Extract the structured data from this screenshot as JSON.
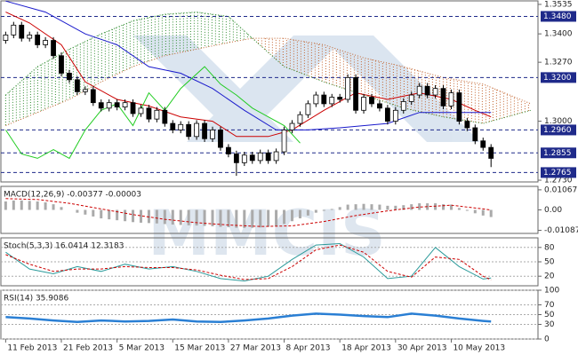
{
  "watermark": "MMCIS",
  "chart_data": [
    {
      "type": "candlestick",
      "xlim": [
        -0.6,
        66.9
      ],
      "ylim": [
        1.2722,
        1.3551
      ],
      "yticks": [
        1.3535,
        {
          "value": 1.34,
          "label": "1.3400"
        },
        {
          "value": 1.327,
          "label": "1.3270"
        },
        {
          "value": 1.3,
          "label": "1.3000"
        },
        {
          "value": 1.273,
          "label": "1.2730"
        }
      ],
      "levels": [
        {
          "value": 1.348,
          "label": "1.3480"
        },
        {
          "value": 1.32,
          "label": "1.3200"
        },
        {
          "value": 1.296,
          "label": "1.2960"
        },
        {
          "value": 1.2855,
          "label": "1.2855"
        },
        {
          "value": 1.2765,
          "label": "1.2765"
        }
      ],
      "level_color": "#1f2a8a",
      "x": [
        0,
        1,
        2,
        3,
        4,
        5,
        6,
        7,
        8,
        9,
        10,
        11,
        12,
        13,
        14,
        15,
        16,
        17,
        18,
        19,
        20,
        21,
        22,
        23,
        24,
        25,
        26,
        27,
        28,
        29,
        30,
        31,
        32,
        33,
        34,
        35,
        36,
        37,
        38,
        39,
        40,
        41,
        42,
        43,
        44,
        45,
        46,
        47,
        48,
        49,
        50,
        51,
        52,
        53,
        54,
        55,
        56,
        57,
        58,
        59,
        60,
        61
      ],
      "open": [
        1.337,
        1.3395,
        1.344,
        1.338,
        1.3395,
        1.335,
        1.337,
        1.33,
        1.322,
        1.319,
        1.3135,
        1.3145,
        1.3085,
        1.306,
        1.3085,
        1.3065,
        1.3085,
        1.3035,
        1.306,
        1.301,
        1.305,
        1.299,
        1.296,
        1.2985,
        1.293,
        1.299,
        1.292,
        1.296,
        1.288,
        1.285,
        1.281,
        1.2845,
        1.282,
        1.2855,
        1.282,
        1.286,
        1.296,
        1.299,
        1.303,
        1.308,
        1.312,
        1.308,
        1.311,
        1.31,
        1.32,
        1.305,
        1.311,
        1.308,
        1.306,
        1.3,
        1.305,
        1.309,
        1.312,
        1.316,
        1.312,
        1.315,
        1.307,
        1.313,
        1.3,
        1.297,
        1.291,
        1.288
      ],
      "high": [
        1.341,
        1.3455,
        1.3455,
        1.341,
        1.341,
        1.3385,
        1.3385,
        1.3315,
        1.3235,
        1.3205,
        1.316,
        1.316,
        1.31,
        1.31,
        1.31,
        1.31,
        1.31,
        1.3075,
        1.3075,
        1.3065,
        1.3065,
        1.3005,
        1.3,
        1.3,
        1.3005,
        1.3005,
        1.2975,
        1.2975,
        1.2895,
        1.2865,
        1.286,
        1.286,
        1.287,
        1.287,
        1.2875,
        1.2975,
        1.3005,
        1.3045,
        1.3095,
        1.3135,
        1.3135,
        1.3125,
        1.3125,
        1.3215,
        1.3215,
        1.3125,
        1.3125,
        1.3095,
        1.3075,
        1.3065,
        1.3105,
        1.3135,
        1.3175,
        1.3175,
        1.3165,
        1.3165,
        1.3145,
        1.3145,
        1.3015,
        1.2985,
        1.2925,
        1.2895
      ],
      "low": [
        1.3355,
        1.338,
        1.3365,
        1.3365,
        1.3335,
        1.3335,
        1.3285,
        1.3205,
        1.3175,
        1.312,
        1.312,
        1.307,
        1.3045,
        1.3045,
        1.305,
        1.305,
        1.302,
        1.302,
        1.2995,
        1.2995,
        1.2975,
        1.2945,
        1.2945,
        1.2915,
        1.2915,
        1.2905,
        1.2905,
        1.2865,
        1.2835,
        1.275,
        1.2795,
        1.2805,
        1.2805,
        1.2805,
        1.2805,
        1.2845,
        1.2945,
        1.2975,
        1.3015,
        1.3065,
        1.3065,
        1.3065,
        1.3085,
        1.3085,
        1.3035,
        1.3035,
        1.3065,
        1.3045,
        1.2985,
        1.2985,
        1.3035,
        1.3075,
        1.3105,
        1.3105,
        1.3105,
        1.3055,
        1.3055,
        1.2985,
        1.2955,
        1.2895,
        1.2865,
        1.279
      ],
      "close": [
        1.3395,
        1.344,
        1.338,
        1.3395,
        1.335,
        1.337,
        1.33,
        1.322,
        1.319,
        1.3135,
        1.3145,
        1.3085,
        1.306,
        1.3085,
        1.3065,
        1.3085,
        1.3035,
        1.306,
        1.301,
        1.305,
        1.299,
        1.296,
        1.2985,
        1.293,
        1.299,
        1.292,
        1.296,
        1.288,
        1.285,
        1.281,
        1.2845,
        1.282,
        1.2855,
        1.282,
        1.286,
        1.296,
        1.299,
        1.303,
        1.308,
        1.312,
        1.308,
        1.311,
        1.31,
        1.32,
        1.305,
        1.311,
        1.308,
        1.306,
        1.3,
        1.305,
        1.309,
        1.312,
        1.316,
        1.312,
        1.315,
        1.307,
        1.313,
        1.3,
        1.297,
        1.291,
        1.288,
        1.283
      ],
      "cloud": {
        "x": [
          0,
          4,
          8,
          12,
          16,
          20,
          24,
          28,
          31,
          35,
          40,
          45,
          50,
          55,
          60,
          66
        ],
        "span_a": [
          1.312,
          1.325,
          1.333,
          1.34,
          1.346,
          1.349,
          1.35,
          1.348,
          1.338,
          1.325,
          1.318,
          1.312,
          1.306,
          1.302,
          1.299,
          1.305
        ],
        "span_b": [
          1.298,
          1.304,
          1.31,
          1.318,
          1.325,
          1.33,
          1.333,
          1.336,
          1.338,
          1.338,
          1.335,
          1.329,
          1.325,
          1.32,
          1.317,
          1.308
        ],
        "colors": [
          "#2e8b2e",
          "#c0602a"
        ]
      },
      "series": [
        {
          "kind": "line",
          "color": "#cc0000",
          "x": [
            0,
            3,
            7,
            10,
            14,
            18,
            22,
            26,
            29,
            33,
            36,
            40,
            44,
            48,
            52,
            56,
            59,
            61
          ],
          "values": [
            1.35,
            1.345,
            1.335,
            1.318,
            1.31,
            1.307,
            1.302,
            1.3,
            1.293,
            1.293,
            1.296,
            1.305,
            1.313,
            1.31,
            1.313,
            1.31,
            1.305,
            1.302
          ]
        },
        {
          "kind": "line",
          "color": "#1a1acc",
          "x": [
            0,
            5,
            10,
            14,
            18,
            22,
            26,
            30,
            34,
            38,
            42,
            48,
            52,
            56,
            61
          ],
          "values": [
            1.355,
            1.35,
            1.34,
            1.335,
            1.325,
            1.322,
            1.315,
            1.305,
            1.296,
            1.296,
            1.297,
            1.299,
            1.304,
            1.304,
            1.304
          ]
        },
        {
          "kind": "line",
          "color": "#22cc22",
          "x": [
            0,
            2,
            4,
            6,
            8,
            10,
            12,
            14,
            16,
            18,
            20,
            22,
            25,
            27,
            29,
            31,
            33,
            35,
            37
          ],
          "values": [
            1.296,
            1.285,
            1.283,
            1.287,
            1.283,
            1.296,
            1.305,
            1.308,
            1.298,
            1.313,
            1.305,
            1.315,
            1.325,
            1.317,
            1.312,
            1.306,
            1.302,
            1.298,
            1.29
          ]
        }
      ]
    },
    {
      "type": "indicator",
      "title": "MACD(12,26,9) -0.00377 -0.00003",
      "xlim": [
        -0.6,
        66.9
      ],
      "ylim": [
        -0.0125,
        0.0125
      ],
      "yticks": [
        0.01067,
        {
          "value": 0,
          "label": "0.00"
        },
        -0.01087
      ],
      "series": [
        {
          "kind": "bar",
          "color": "#aaaaaa",
          "x": [
            0,
            1,
            2,
            3,
            4,
            5,
            6,
            7,
            8,
            9,
            10,
            11,
            12,
            13,
            14,
            15,
            16,
            17,
            18,
            19,
            20,
            21,
            22,
            23,
            24,
            25,
            26,
            27,
            28,
            29,
            30,
            31,
            32,
            33,
            34,
            35,
            36,
            37,
            38,
            39,
            40,
            41,
            42,
            43,
            44,
            45,
            46,
            47,
            48,
            49,
            50,
            51,
            52,
            53,
            54,
            55,
            56,
            57,
            58,
            59,
            60,
            61
          ],
          "values": [
            0.0045,
            0.005,
            0.005,
            0.0048,
            0.0045,
            0.004,
            0.003,
            0.0015,
            0.0,
            -0.0015,
            -0.0025,
            -0.0035,
            -0.0045,
            -0.005,
            -0.0055,
            -0.006,
            -0.0065,
            -0.0068,
            -0.007,
            -0.0072,
            -0.0075,
            -0.0078,
            -0.008,
            -0.0082,
            -0.0083,
            -0.0085,
            -0.0087,
            -0.009,
            -0.0092,
            -0.0095,
            -0.0096,
            -0.0095,
            -0.0093,
            -0.009,
            -0.0085,
            -0.0075,
            -0.006,
            -0.0045,
            -0.003,
            -0.0015,
            -0.0005,
            0.0005,
            0.0015,
            0.0028,
            0.003,
            0.0032,
            0.003,
            0.0028,
            0.0022,
            0.0022,
            0.0025,
            0.003,
            0.0035,
            0.0035,
            0.0035,
            0.003,
            0.0028,
            0.001,
            -0.0005,
            -0.0018,
            -0.003,
            -0.0038
          ]
        },
        {
          "kind": "dash",
          "color": "#cc0000",
          "x": [
            0,
            4,
            8,
            12,
            16,
            20,
            24,
            28,
            32,
            36,
            40,
            44,
            48,
            52,
            56,
            60,
            61
          ],
          "values": [
            0.006,
            0.0055,
            0.0035,
            0.0005,
            -0.0025,
            -0.005,
            -0.0068,
            -0.008,
            -0.0088,
            -0.0085,
            -0.0062,
            -0.003,
            -0.0005,
            0.0015,
            0.0025,
            0.0005,
            -3e-05
          ]
        }
      ]
    },
    {
      "type": "indicator",
      "title": "Stoch(5,3,3) 16.0414 12.3183",
      "xlim": [
        -0.6,
        66.9
      ],
      "ylim": [
        0,
        100
      ],
      "yticks": [
        20,
        50,
        80
      ],
      "grid": true,
      "series": [
        {
          "kind": "line",
          "color": "#2a9a9a",
          "x": [
            0,
            3,
            6,
            9,
            12,
            15,
            18,
            21,
            24,
            27,
            30,
            33,
            36,
            39,
            42,
            45,
            48,
            51,
            54,
            57,
            60,
            61
          ],
          "values": [
            70,
            35,
            25,
            40,
            30,
            45,
            35,
            40,
            30,
            15,
            10,
            20,
            55,
            85,
            88,
            60,
            15,
            20,
            80,
            40,
            14,
            16.0414
          ]
        },
        {
          "kind": "dash",
          "color": "#cc0000",
          "x": [
            0,
            3,
            6,
            9,
            12,
            15,
            18,
            21,
            24,
            27,
            30,
            33,
            36,
            39,
            42,
            45,
            48,
            51,
            54,
            57,
            60,
            61
          ],
          "values": [
            65,
            45,
            30,
            35,
            35,
            40,
            38,
            38,
            33,
            22,
            13,
            15,
            40,
            75,
            85,
            70,
            30,
            18,
            60,
            55,
            20,
            12.3183
          ]
        }
      ]
    },
    {
      "type": "indicator",
      "title": "RSI(14) 35.9086",
      "xlim": [
        -0.6,
        66.9
      ],
      "ylim": [
        0,
        100
      ],
      "yticks": [
        0,
        30,
        50,
        70,
        100
      ],
      "grid": true,
      "xticks": [
        {
          "value": 0,
          "label": "11 Feb 2013"
        },
        {
          "value": 7,
          "label": "21 Feb 2013"
        },
        {
          "value": 14,
          "label": "5 Mar 2013"
        },
        {
          "value": 21,
          "label": "15 Mar 2013"
        },
        {
          "value": 28,
          "label": "27 Mar 2013"
        },
        {
          "value": 35,
          "label": "8 Apr 2013"
        },
        {
          "value": 42,
          "label": "18 Apr 2013"
        },
        {
          "value": 49,
          "label": "30 Apr 2013"
        },
        {
          "value": 56,
          "label": "10 May 2013"
        }
      ],
      "series": [
        {
          "kind": "thick",
          "color": "#2a7fd4",
          "x": [
            0,
            3,
            6,
            9,
            12,
            15,
            18,
            21,
            24,
            27,
            30,
            33,
            36,
            39,
            42,
            45,
            48,
            51,
            54,
            57,
            60,
            61
          ],
          "values": [
            45,
            42,
            38,
            35,
            38,
            36,
            37,
            40,
            36,
            35,
            38,
            42,
            48,
            52,
            50,
            47,
            45,
            52,
            48,
            42,
            37,
            35.9086
          ]
        }
      ]
    }
  ]
}
